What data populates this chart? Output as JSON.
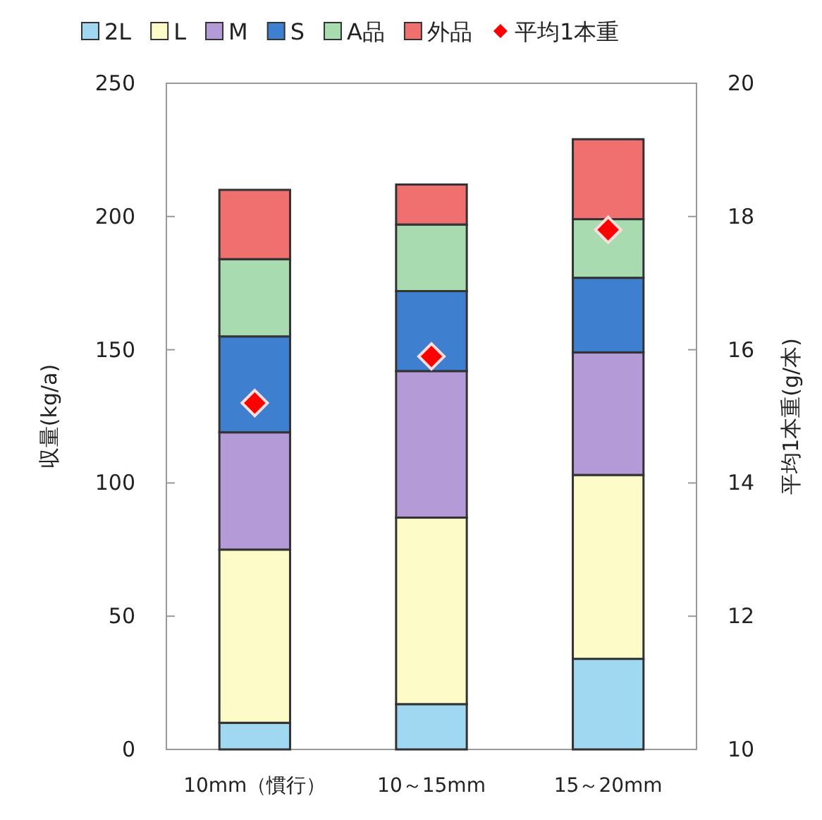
{
  "chart_data": {
    "type": "bar",
    "stacked": true,
    "categories": [
      "10mm（慣行）",
      "10～15mm",
      "15～20mm"
    ],
    "ylabel": "収量(kg/a)",
    "y2label": "平均1本重(g/本)",
    "ylim": [
      0,
      250
    ],
    "yticks": [
      0,
      50,
      100,
      150,
      200,
      250
    ],
    "y2lim": [
      10,
      20
    ],
    "y2ticks": [
      10,
      12,
      14,
      16,
      18,
      20
    ],
    "grid": false,
    "legend": "top",
    "series": [
      {
        "name": "2L",
        "color": "#9fd8f0",
        "values": [
          10,
          17,
          34
        ]
      },
      {
        "name": "L",
        "color": "#fdfcc8",
        "values": [
          65,
          70,
          69
        ]
      },
      {
        "name": "M",
        "color": "#b59ad8",
        "values": [
          44,
          55,
          46
        ]
      },
      {
        "name": "S",
        "color": "#3f7fd0",
        "values": [
          36,
          30,
          28
        ]
      },
      {
        "name": "A品",
        "color": "#a8dcb0",
        "values": [
          29,
          25,
          22
        ]
      },
      {
        "name": "外品",
        "color": "#f07070",
        "values": [
          26,
          15,
          30
        ]
      },
      {
        "name": "平均1本重",
        "type": "scatter",
        "axis": "y2",
        "marker": "diamond",
        "color": "#ff0000",
        "x": [
          "10mm（慣行）",
          "10～15mm",
          "15～20mm"
        ],
        "values": [
          15.2,
          15.9,
          17.8
        ]
      }
    ]
  }
}
